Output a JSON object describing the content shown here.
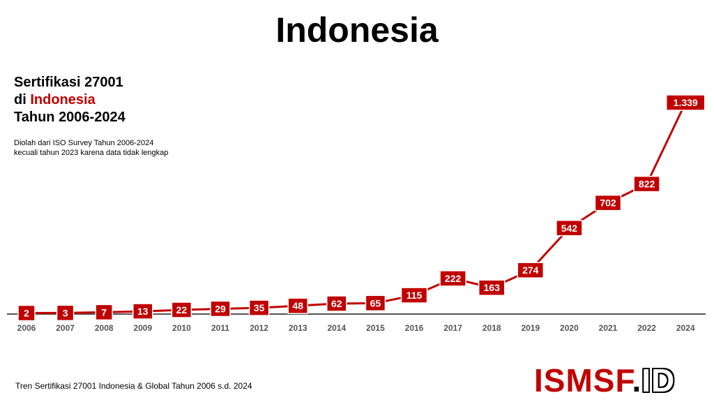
{
  "header": {
    "title": "Indonesia"
  },
  "subtitle": {
    "line1": "Sertifikasi 27001",
    "line2_prefix": "di ",
    "line2_highlight": "Indonesia",
    "line3": "Tahun 2006-2024"
  },
  "note": {
    "line1": "Diolah dari ISO Survey Tahun 2006-2024",
    "line2": "kecuali tahun 2023 karena data tidak lengkap"
  },
  "footer": {
    "caption": "Tren Sertifikasi 27001 Indonesia & Global Tahun 2006 s.d. 2024"
  },
  "logo": {
    "main": "ISMSF",
    "dot": ".",
    "suffix": "ID"
  },
  "colors": {
    "accent": "#c00000",
    "axis": "#555555",
    "label_text": "#ffffff"
  },
  "chart_data": {
    "type": "line",
    "title": "",
    "xlabel": "",
    "ylabel": "",
    "categories": [
      "2006",
      "2007",
      "2008",
      "2009",
      "2010",
      "2011",
      "2012",
      "2013",
      "2014",
      "2015",
      "2016",
      "2017",
      "2018",
      "2019",
      "2020",
      "2021",
      "2022",
      "2024"
    ],
    "series": [
      {
        "values": [
          2,
          3,
          7,
          13,
          22,
          29,
          35,
          48,
          62,
          65,
          115,
          222,
          163,
          274,
          542,
          702,
          822,
          1339
        ],
        "labels": [
          "2",
          "3",
          "7",
          "13",
          "22",
          "29",
          "35",
          "48",
          "62",
          "65",
          "115",
          "222",
          "163",
          "274",
          "542",
          "702",
          "822",
          "1.339"
        ]
      }
    ],
    "ylim": [
      0,
      1339
    ],
    "grid": false,
    "legend": "none"
  }
}
